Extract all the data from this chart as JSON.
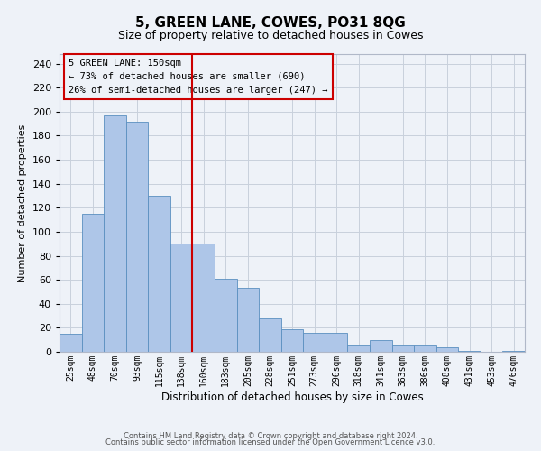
{
  "title": "5, GREEN LANE, COWES, PO31 8QG",
  "subtitle": "Size of property relative to detached houses in Cowes",
  "xlabel": "Distribution of detached houses by size in Cowes",
  "ylabel": "Number of detached properties",
  "footer_line1": "Contains HM Land Registry data © Crown copyright and database right 2024.",
  "footer_line2": "Contains public sector information licensed under the Open Government Licence v3.0.",
  "annotation_line1": "5 GREEN LANE: 150sqm",
  "annotation_line2": "← 73% of detached houses are smaller (690)",
  "annotation_line3": "26% of semi-detached houses are larger (247) →",
  "categories": [
    "25sqm",
    "48sqm",
    "70sqm",
    "93sqm",
    "115sqm",
    "138sqm",
    "160sqm",
    "183sqm",
    "205sqm",
    "228sqm",
    "251sqm",
    "273sqm",
    "296sqm",
    "318sqm",
    "341sqm",
    "363sqm",
    "386sqm",
    "408sqm",
    "431sqm",
    "453sqm",
    "476sqm"
  ],
  "values": [
    15,
    115,
    197,
    192,
    130,
    90,
    90,
    61,
    53,
    28,
    19,
    16,
    16,
    5,
    10,
    5,
    5,
    4,
    1,
    0,
    1
  ],
  "bar_color": "#aec6e8",
  "bar_edge_color": "#5a8fc0",
  "vline_color": "#cc0000",
  "annotation_box_edge_color": "#cc0000",
  "grid_color": "#c8d0dc",
  "background_color": "#eef2f8",
  "ylim": [
    0,
    248
  ],
  "yticks": [
    0,
    20,
    40,
    60,
    80,
    100,
    120,
    140,
    160,
    180,
    200,
    220,
    240
  ],
  "title_fontsize": 11,
  "subtitle_fontsize": 9,
  "ylabel_fontsize": 8,
  "xlabel_fontsize": 8.5,
  "xtick_fontsize": 7,
  "ytick_fontsize": 8,
  "annotation_fontsize": 7.5,
  "footer_fontsize": 6
}
